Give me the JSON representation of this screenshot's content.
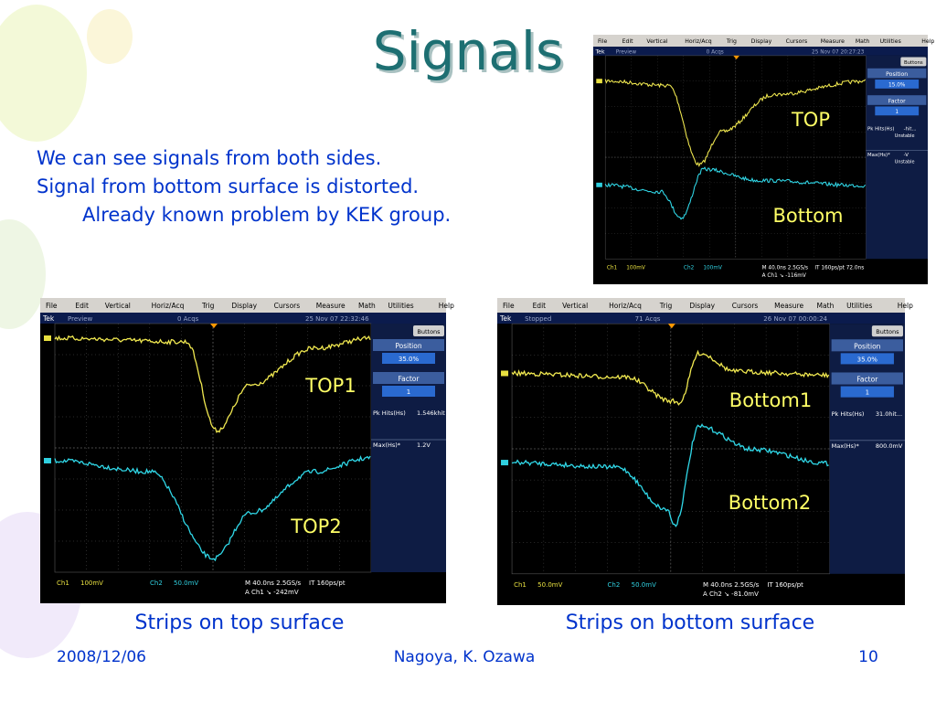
{
  "title": "Signals",
  "notes": [
    "We can see signals from both sides.",
    "Signal from bottom surface is distorted.",
    "Already known problem by KEK group."
  ],
  "menu": [
    "File",
    "Edit",
    "Vertical",
    "Horiz/Acq",
    "Trig",
    "Display",
    "Cursors",
    "Measure",
    "Math",
    "Utilities",
    "Help"
  ],
  "ui": {
    "brand": "Tek",
    "buttons": "Buttons",
    "position": "Position",
    "factor": "Factor"
  },
  "scopes": [
    {
      "status": "Preview",
      "acqs": "0 Acqs",
      "date": "25 Nov 07 20:27:23",
      "position": "15.0%",
      "factor": "1",
      "meas1": "Pk Hits(Hs)",
      "meas1_val": "-hit...",
      "meas1_note": "Unstable",
      "meas2": "Max(Hs)*",
      "meas2_val": "-V",
      "meas2_note": "Unstable",
      "ch1": "Ch1",
      "ch1_scale": "100mV",
      "ch2": "Ch2",
      "ch2_scale": "100mV",
      "timebase": "M 40.0ns 2.5GS/s",
      "record": "IT 160ps/pt 72.0ns",
      "trigger": "A Ch1 ↘ -116mV",
      "labels": [
        "TOP",
        "Bottom"
      ]
    },
    {
      "status": "Preview",
      "acqs": "0 Acqs",
      "date": "25 Nov 07 22:32:46",
      "position": "35.0%",
      "factor": "1",
      "meas1": "Pk Hits(Hs)",
      "meas1_val": "1.546khit",
      "meas2": "Max(Hs)*",
      "meas2_val": "1.2V",
      "ch1": "Ch1",
      "ch1_scale": "100mV",
      "ch2": "Ch2",
      "ch2_scale": "50.0mV",
      "timebase": "M 40.0ns 2.5GS/s",
      "record": "IT 160ps/pt",
      "trigger": "A Ch1 ↘ -242mV",
      "labels": [
        "TOP1",
        "TOP2"
      ]
    },
    {
      "status": "Stopped",
      "acqs": "71 Acqs",
      "date": "26 Nov 07 00:00:24",
      "position": "35.0%",
      "factor": "1",
      "meas1": "Pk Hits(Hs)",
      "meas1_val": "31.0hit...",
      "meas2": "Max(Hs)*",
      "meas2_val": "800.0mV",
      "ch1": "Ch1",
      "ch1_scale": "50.0mV",
      "ch2": "Ch2",
      "ch2_scale": "50.0mV",
      "timebase": "M 40.0ns 2.5GS/s",
      "record": "IT 160ps/pt",
      "trigger": "A Ch2 ↘ -81.0mV",
      "labels": [
        "Bottom1",
        "Bottom2"
      ]
    }
  ],
  "captions": [
    "Strips on top surface",
    "Strips on bottom surface"
  ],
  "footer": {
    "date": "2008/12/06",
    "author": "Nagoya, K. Ozawa",
    "page": "10"
  }
}
